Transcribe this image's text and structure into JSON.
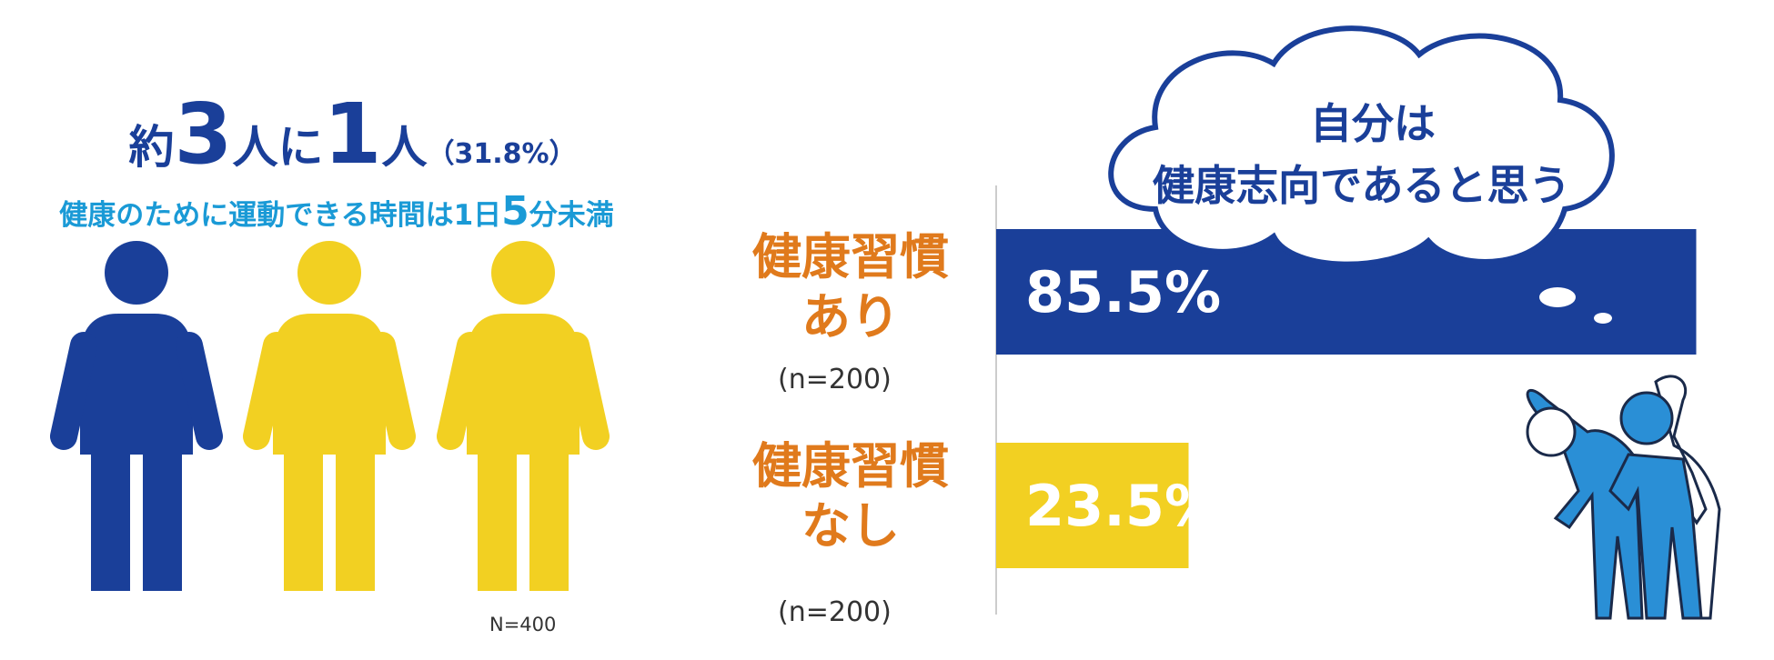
{
  "infographic": {
    "headline": [
      "約",
      "3",
      "人に",
      "1",
      "人",
      "（31.8%）"
    ],
    "subtitle": [
      "健康のために運動できる時間は1日",
      "5",
      "分未満"
    ],
    "figure_colors": [
      "#1a3f99",
      "#f2d022",
      "#f2d022"
    ],
    "note": "N=400"
  },
  "chart_data": {
    "type": "bar",
    "orientation": "horizontal",
    "categories": [
      "健康習慣あり",
      "健康習慣なし"
    ],
    "values": [
      85.5,
      23.5
    ],
    "value_labels": [
      "85.5%",
      "23.5%"
    ],
    "colors": [
      "#1a3f99",
      "#f2d022"
    ],
    "sample_sizes": [
      "(n=200)",
      "(n=200)"
    ],
    "xlim": [
      0,
      100
    ],
    "callout": [
      "自分は",
      "健康志向であると思う"
    ]
  }
}
